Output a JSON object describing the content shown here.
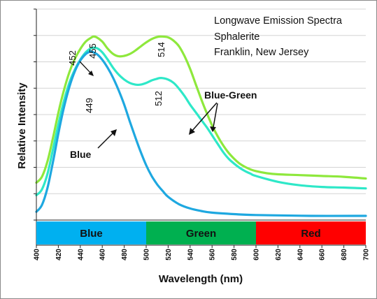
{
  "chart_data": {
    "type": "line",
    "title_lines": [
      "Longwave Emission Spectra",
      "Sphalerite",
      "Franklin, New Jersey"
    ],
    "xlabel": "Wavelength (nm)",
    "ylabel": "Relative Intensity",
    "xlim": [
      400,
      700
    ],
    "ylim": [
      0,
      1
    ],
    "x_ticks": [
      400,
      420,
      440,
      460,
      480,
      500,
      520,
      540,
      560,
      580,
      600,
      620,
      640,
      660,
      680,
      700
    ],
    "y_grid_count": 8,
    "grid": true,
    "color_bands": [
      {
        "label": "Blue",
        "from": 400,
        "to": 500,
        "color": "#00b0f0"
      },
      {
        "label": "Green",
        "from": 500,
        "to": 600,
        "color": "#00b050"
      },
      {
        "label": "Red",
        "from": 600,
        "to": 700,
        "color": "#ff0000"
      }
    ],
    "series": [
      {
        "color": "#8ee83c",
        "points": [
          [
            400,
            0.177
          ],
          [
            405,
            0.205
          ],
          [
            410,
            0.276
          ],
          [
            415,
            0.386
          ],
          [
            420,
            0.508
          ],
          [
            425,
            0.614
          ],
          [
            430,
            0.7
          ],
          [
            435,
            0.764
          ],
          [
            440,
            0.811
          ],
          [
            445,
            0.846
          ],
          [
            450,
            0.865
          ],
          [
            452,
            0.87
          ],
          [
            455,
            0.866
          ],
          [
            460,
            0.846
          ],
          [
            465,
            0.812
          ],
          [
            470,
            0.787
          ],
          [
            475,
            0.776
          ],
          [
            480,
            0.778
          ],
          [
            485,
            0.787
          ],
          [
            490,
            0.803
          ],
          [
            495,
            0.823
          ],
          [
            500,
            0.842
          ],
          [
            505,
            0.858
          ],
          [
            510,
            0.868
          ],
          [
            514,
            0.87
          ],
          [
            520,
            0.866
          ],
          [
            525,
            0.85
          ],
          [
            530,
            0.823
          ],
          [
            535,
            0.776
          ],
          [
            540,
            0.717
          ],
          [
            545,
            0.646
          ],
          [
            550,
            0.575
          ],
          [
            555,
            0.509
          ],
          [
            560,
            0.449
          ],
          [
            565,
            0.398
          ],
          [
            570,
            0.355
          ],
          [
            575,
            0.319
          ],
          [
            580,
            0.291
          ],
          [
            585,
            0.268
          ],
          [
            590,
            0.252
          ],
          [
            595,
            0.24
          ],
          [
            600,
            0.232
          ],
          [
            610,
            0.222
          ],
          [
            620,
            0.217
          ],
          [
            640,
            0.213
          ],
          [
            660,
            0.209
          ],
          [
            680,
            0.205
          ],
          [
            700,
            0.197
          ]
        ]
      },
      {
        "color": "#2ee8c8",
        "points": [
          [
            400,
            0.118
          ],
          [
            405,
            0.145
          ],
          [
            410,
            0.217
          ],
          [
            415,
            0.331
          ],
          [
            420,
            0.453
          ],
          [
            425,
            0.563
          ],
          [
            430,
            0.65
          ],
          [
            435,
            0.713
          ],
          [
            440,
            0.76
          ],
          [
            445,
            0.795
          ],
          [
            450,
            0.815
          ],
          [
            455,
            0.815
          ],
          [
            460,
            0.795
          ],
          [
            465,
            0.76
          ],
          [
            470,
            0.721
          ],
          [
            475,
            0.689
          ],
          [
            480,
            0.666
          ],
          [
            485,
            0.65
          ],
          [
            490,
            0.642
          ],
          [
            495,
            0.642
          ],
          [
            500,
            0.65
          ],
          [
            505,
            0.662
          ],
          [
            510,
            0.67
          ],
          [
            512,
            0.673
          ],
          [
            515,
            0.673
          ],
          [
            520,
            0.666
          ],
          [
            525,
            0.65
          ],
          [
            530,
            0.622
          ],
          [
            535,
            0.587
          ],
          [
            540,
            0.547
          ],
          [
            545,
            0.512
          ],
          [
            550,
            0.476
          ],
          [
            555,
            0.441
          ],
          [
            560,
            0.402
          ],
          [
            565,
            0.362
          ],
          [
            570,
            0.323
          ],
          [
            575,
            0.291
          ],
          [
            580,
            0.268
          ],
          [
            585,
            0.248
          ],
          [
            590,
            0.232
          ],
          [
            595,
            0.22
          ],
          [
            600,
            0.209
          ],
          [
            620,
            0.181
          ],
          [
            640,
            0.165
          ],
          [
            660,
            0.157
          ],
          [
            680,
            0.154
          ],
          [
            700,
            0.15
          ]
        ]
      },
      {
        "color": "#1ea8e0",
        "points": [
          [
            400,
            0.039
          ],
          [
            405,
            0.071
          ],
          [
            410,
            0.15
          ],
          [
            415,
            0.272
          ],
          [
            420,
            0.409
          ],
          [
            425,
            0.532
          ],
          [
            430,
            0.63
          ],
          [
            435,
            0.705
          ],
          [
            440,
            0.756
          ],
          [
            445,
            0.787
          ],
          [
            449,
            0.799
          ],
          [
            450,
            0.799
          ],
          [
            455,
            0.787
          ],
          [
            460,
            0.76
          ],
          [
            465,
            0.721
          ],
          [
            470,
            0.673
          ],
          [
            475,
            0.614
          ],
          [
            480,
            0.547
          ],
          [
            485,
            0.469
          ],
          [
            490,
            0.394
          ],
          [
            495,
            0.323
          ],
          [
            500,
            0.26
          ],
          [
            505,
            0.209
          ],
          [
            510,
            0.169
          ],
          [
            515,
            0.138
          ],
          [
            520,
            0.11
          ],
          [
            530,
            0.075
          ],
          [
            540,
            0.055
          ],
          [
            550,
            0.043
          ],
          [
            560,
            0.035
          ],
          [
            580,
            0.028
          ],
          [
            600,
            0.024
          ],
          [
            650,
            0.02
          ],
          [
            700,
            0.02
          ]
        ]
      }
    ],
    "annotations": [
      {
        "text": "452",
        "kind": "peak"
      },
      {
        "text": "455",
        "kind": "peak"
      },
      {
        "text": "514",
        "kind": "peak"
      },
      {
        "text": "512",
        "kind": "peak"
      },
      {
        "text": "449",
        "kind": "peak"
      },
      {
        "text": "Blue-Green",
        "kind": "series-label"
      },
      {
        "text": "Blue",
        "kind": "series-label"
      }
    ]
  }
}
